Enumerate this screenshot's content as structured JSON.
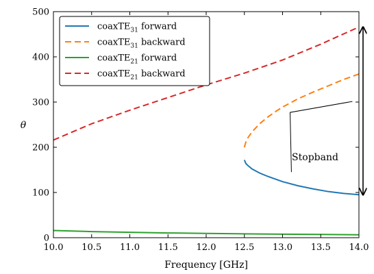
{
  "chart_data": {
    "type": "line",
    "xlabel": "Frequency [GHz]",
    "ylabel": "θ",
    "xlim": [
      10.0,
      14.0
    ],
    "ylim": [
      0,
      500
    ],
    "xticks": [
      "10.0",
      "10.5",
      "11.0",
      "11.5",
      "12.0",
      "12.5",
      "13.0",
      "13.5",
      "14.0"
    ],
    "yticks": [
      "0",
      "100",
      "200",
      "300",
      "400",
      "500"
    ],
    "grid": false,
    "legend_position": "top-left",
    "series": [
      {
        "name": "coaxTE31 forward",
        "label_main": "coaxTE",
        "label_sub": "31",
        "label_suffix": " forward",
        "color": "#1f77b4",
        "dash": "solid",
        "x": [
          12.5,
          12.52,
          12.55,
          12.6,
          12.7,
          12.8,
          12.9,
          13.0,
          13.2,
          13.4,
          13.6,
          13.8,
          14.0
        ],
        "y": [
          172,
          164,
          159,
          152,
          143,
          136,
          130,
          124,
          115,
          108,
          102,
          98,
          95
        ]
      },
      {
        "name": "coaxTE31 backward",
        "label_main": "coaxTE",
        "label_sub": "31",
        "label_suffix": " backward",
        "color": "#ff7f0e",
        "dash": "dashed",
        "x": [
          12.5,
          12.52,
          12.55,
          12.6,
          12.7,
          12.8,
          12.9,
          13.0,
          13.2,
          13.4,
          13.6,
          13.8,
          14.0
        ],
        "y": [
          200,
          212,
          222,
          234,
          252,
          266,
          278,
          289,
          307,
          322,
          336,
          350,
          362
        ]
      },
      {
        "name": "coaxTE21 forward",
        "label_main": "coaxTE",
        "label_sub": "21",
        "label_suffix": " forward",
        "color": "#2ca02c",
        "dash": "solid",
        "x": [
          10.0,
          10.5,
          11.0,
          11.5,
          12.0,
          12.5,
          13.0,
          13.5,
          14.0
        ],
        "y": [
          16,
          13.5,
          12,
          10.5,
          9.5,
          8.5,
          7.8,
          7.2,
          6.5
        ]
      },
      {
        "name": "coaxTE21 backward",
        "label_main": "coaxTE",
        "label_sub": "21",
        "label_suffix": " backward",
        "color": "#d62728",
        "dash": "dashed",
        "x": [
          10.0,
          10.5,
          11.0,
          11.5,
          12.0,
          12.5,
          13.0,
          13.5,
          14.0
        ],
        "y": [
          216,
          252,
          282,
          310,
          338,
          364,
          393,
          428,
          466
        ]
      }
    ],
    "annotations": [
      {
        "text": "Stopband",
        "arrow_x": 14.0,
        "arrow_y": [
          95,
          466
        ],
        "leader_from": [
          12.82,
          133
        ],
        "leader_to": [
          13.95,
          265
        ]
      }
    ]
  }
}
